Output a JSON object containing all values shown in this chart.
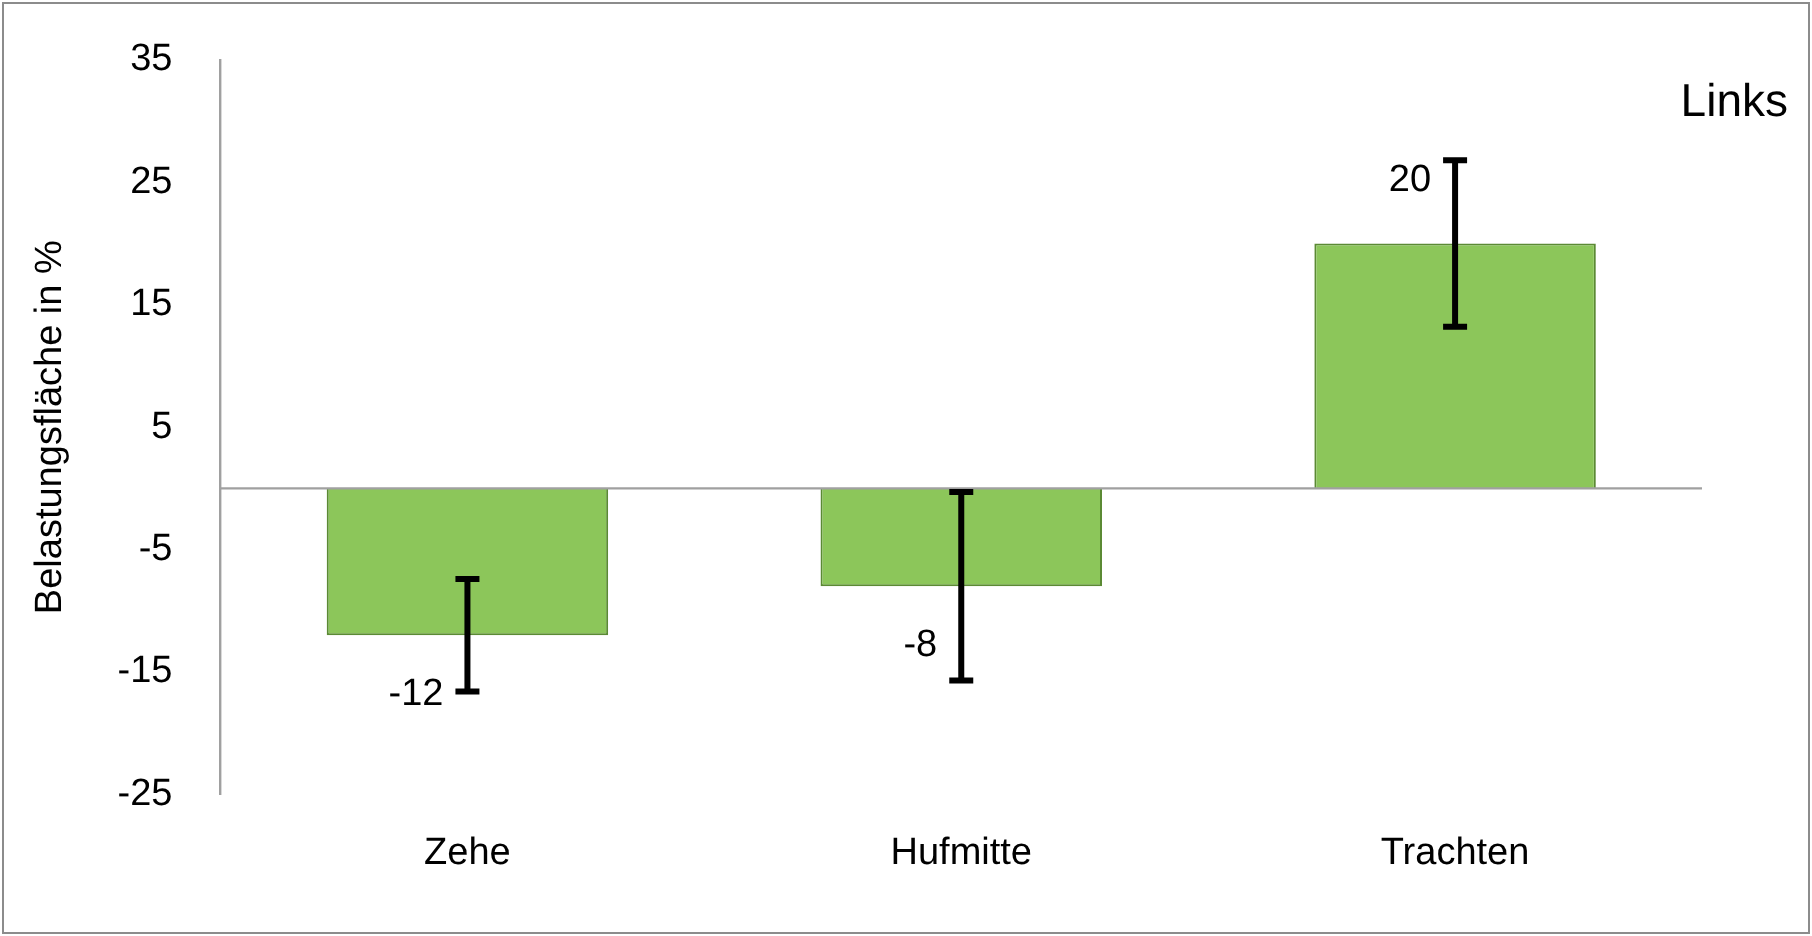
{
  "chart_data": {
    "type": "bar",
    "ylabel": "Belastungsfläche in %",
    "annotations": [
      "Links"
    ],
    "categories": [
      "Zehe",
      "Hufmitte",
      "Trachten"
    ],
    "values": [
      -12,
      -8,
      20
    ],
    "errors": [
      4.6,
      7.7,
      6.8
    ],
    "color": "#8cc65a",
    "ylim": [
      -25,
      35
    ],
    "yticks": [
      -25,
      -15,
      -5,
      5,
      15,
      25,
      35
    ],
    "grid": false,
    "legend": false,
    "data_labels": true
  }
}
